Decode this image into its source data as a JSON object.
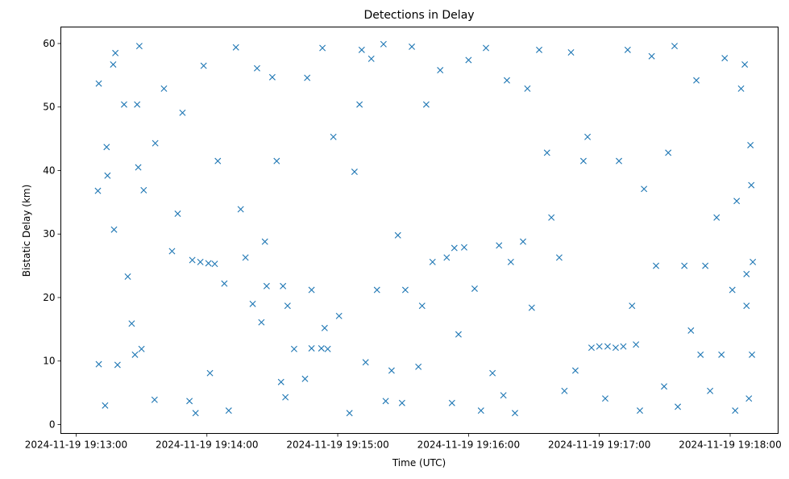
{
  "chart_data": {
    "type": "scatter",
    "title": "Detections in Delay",
    "xlabel": "Time (UTC)",
    "ylabel": "Bistatic Delay (km)",
    "x_origin": "2024-11-19 19:13:00",
    "x_units": "seconds since 2024-11-19 19:13:00",
    "xlim": [
      -7,
      322
    ],
    "ylim": [
      -1.4,
      62.6
    ],
    "grid": false,
    "marker": "x",
    "color": "#1f77b4",
    "x_ticks": [
      {
        "value": 0,
        "label": "2024-11-19 19:13:00"
      },
      {
        "value": 60,
        "label": "2024-11-19 19:14:00"
      },
      {
        "value": 120,
        "label": "2024-11-19 19:15:00"
      },
      {
        "value": 180,
        "label": "2024-11-19 19:16:00"
      },
      {
        "value": 240,
        "label": "2024-11-19 19:17:00"
      },
      {
        "value": 300,
        "label": "2024-11-19 19:18:00"
      }
    ],
    "y_ticks": [
      {
        "value": 0,
        "label": "0"
      },
      {
        "value": 10,
        "label": "10"
      },
      {
        "value": 20,
        "label": "20"
      },
      {
        "value": 30,
        "label": "30"
      },
      {
        "value": 40,
        "label": "40"
      },
      {
        "value": 50,
        "label": "50"
      },
      {
        "value": 60,
        "label": "60"
      }
    ],
    "points": [
      [
        10,
        36.8
      ],
      [
        10.4,
        53.7
      ],
      [
        10.4,
        9.5
      ],
      [
        13.3,
        3.0
      ],
      [
        14,
        43.7
      ],
      [
        14.4,
        39.2
      ],
      [
        17,
        56.7
      ],
      [
        18,
        58.5
      ],
      [
        17.4,
        30.7
      ],
      [
        19,
        9.4
      ],
      [
        22,
        50.4
      ],
      [
        23.7,
        23.3
      ],
      [
        25.5,
        15.9
      ],
      [
        27,
        11
      ],
      [
        28,
        50.4
      ],
      [
        29,
        59.6
      ],
      [
        28.5,
        40.5
      ],
      [
        31,
        36.9
      ],
      [
        30,
        11.9
      ],
      [
        36,
        3.9
      ],
      [
        36.3,
        44.3
      ],
      [
        40.3,
        52.9
      ],
      [
        44,
        27.3
      ],
      [
        46.6,
        33.2
      ],
      [
        48.8,
        49.1
      ],
      [
        52,
        3.7
      ],
      [
        54.8,
        1.8
      ],
      [
        53.3,
        25.9
      ],
      [
        57,
        25.6
      ],
      [
        60.7,
        25.4
      ],
      [
        63.6,
        25.3
      ],
      [
        58.5,
        56.5
      ],
      [
        61.4,
        8.1
      ],
      [
        65,
        41.5
      ],
      [
        68,
        22.2
      ],
      [
        70,
        2.2
      ],
      [
        73.3,
        59.4
      ],
      [
        75.5,
        33.9
      ],
      [
        77.7,
        26.3
      ],
      [
        81,
        19
      ],
      [
        83,
        56.1
      ],
      [
        85,
        16.1
      ],
      [
        86.6,
        28.8
      ],
      [
        87.4,
        21.8
      ],
      [
        90,
        54.7
      ],
      [
        92,
        41.5
      ],
      [
        94,
        6.7
      ],
      [
        94.9,
        21.8
      ],
      [
        96,
        4.3
      ],
      [
        97,
        18.7
      ],
      [
        100,
        11.9
      ],
      [
        105,
        7.2
      ],
      [
        108,
        12
      ],
      [
        112.5,
        12
      ],
      [
        115.4,
        11.9
      ],
      [
        114,
        15.2
      ],
      [
        108,
        21.2
      ],
      [
        106,
        54.6
      ],
      [
        113,
        59.3
      ],
      [
        118,
        45.3
      ],
      [
        120.6,
        17.1
      ],
      [
        125.4,
        1.8
      ],
      [
        127.7,
        39.8
      ],
      [
        130,
        50.4
      ],
      [
        131,
        59
      ],
      [
        132.8,
        9.8
      ],
      [
        135.4,
        57.6
      ],
      [
        138,
        21.2
      ],
      [
        142,
        3.7
      ],
      [
        144.7,
        8.5
      ],
      [
        141,
        59.9
      ],
      [
        147.6,
        29.8
      ],
      [
        149.5,
        3.4
      ],
      [
        151,
        21.2
      ],
      [
        154,
        59.5
      ],
      [
        157,
        9.1
      ],
      [
        158.7,
        18.7
      ],
      [
        160.6,
        50.4
      ],
      [
        163.5,
        25.6
      ],
      [
        167,
        55.8
      ],
      [
        170,
        26.3
      ],
      [
        172.4,
        3.4
      ],
      [
        173.5,
        27.8
      ],
      [
        175.4,
        14.2
      ],
      [
        178,
        27.9
      ],
      [
        180,
        57.4
      ],
      [
        182.8,
        21.4
      ],
      [
        185.7,
        2.2
      ],
      [
        188,
        59.3
      ],
      [
        191,
        8.1
      ],
      [
        194,
        28.2
      ],
      [
        196,
        4.6
      ],
      [
        197.6,
        54.2
      ],
      [
        199.4,
        25.6
      ],
      [
        201.3,
        1.8
      ],
      [
        205,
        28.8
      ],
      [
        207,
        52.9
      ],
      [
        209,
        18.4
      ],
      [
        212.4,
        59
      ],
      [
        216,
        42.8
      ],
      [
        218,
        32.6
      ],
      [
        221.6,
        26.3
      ],
      [
        224,
        5.3
      ],
      [
        227,
        58.6
      ],
      [
        229,
        8.5
      ],
      [
        232.7,
        41.5
      ],
      [
        234.6,
        45.3
      ],
      [
        236.4,
        12.1
      ],
      [
        240,
        12.3
      ],
      [
        243.8,
        12.3
      ],
      [
        247.5,
        12.1
      ],
      [
        251,
        12.3
      ],
      [
        256.8,
        12.6
      ],
      [
        242.7,
        4.1
      ],
      [
        249,
        41.5
      ],
      [
        253,
        59
      ],
      [
        255,
        18.7
      ],
      [
        258.6,
        2.2
      ],
      [
        260.5,
        37.1
      ],
      [
        264,
        58
      ],
      [
        266,
        25
      ],
      [
        269.7,
        6
      ],
      [
        271.6,
        42.8
      ],
      [
        274.5,
        59.6
      ],
      [
        276,
        2.8
      ],
      [
        279,
        25
      ],
      [
        282,
        14.8
      ],
      [
        284.5,
        54.2
      ],
      [
        286.4,
        11
      ],
      [
        288.6,
        25
      ],
      [
        290.8,
        5.3
      ],
      [
        293.8,
        32.6
      ],
      [
        296,
        11
      ],
      [
        297.5,
        57.7
      ],
      [
        301,
        21.2
      ],
      [
        302.3,
        2.2
      ],
      [
        303,
        35.2
      ],
      [
        305,
        52.9
      ],
      [
        306.7,
        56.7
      ],
      [
        307.5,
        23.7
      ],
      [
        308.6,
        4.1
      ],
      [
        309.3,
        44
      ],
      [
        310,
        11
      ],
      [
        310.4,
        25.6
      ],
      [
        309.7,
        37.7
      ],
      [
        307.5,
        18.7
      ]
    ]
  }
}
